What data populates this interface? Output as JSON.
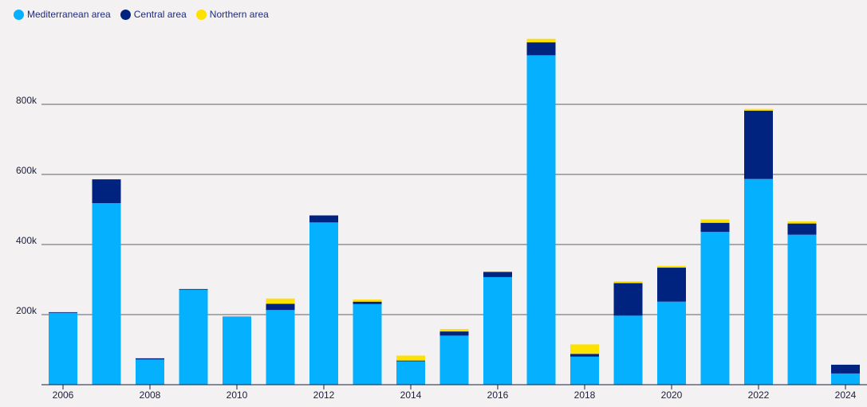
{
  "chart_data": {
    "type": "bar",
    "stacked": true,
    "title": "",
    "xlabel": "",
    "ylabel": "",
    "categories": [
      "2006",
      "2007",
      "2008",
      "2009",
      "2010",
      "2011",
      "2012",
      "2013",
      "2014",
      "2015",
      "2016",
      "2017",
      "2018",
      "2019",
      "2020",
      "2021",
      "2022",
      "2023",
      "2024"
    ],
    "x_tick_labels": [
      "2006",
      "2008",
      "2010",
      "2012",
      "2014",
      "2016",
      "2018",
      "2020",
      "2022",
      "2024"
    ],
    "y_ticks": [
      200000,
      400000,
      600000,
      800000
    ],
    "y_tick_labels": [
      "200k",
      "400k",
      "600k",
      "800k"
    ],
    "ylim": [
      0,
      1000000
    ],
    "grid": true,
    "legend_position": "top-left",
    "series": [
      {
        "name": "Mediterranean area",
        "color": "#05b1ff",
        "values": [
          205000,
          518000,
          72000,
          271000,
          193000,
          213000,
          463000,
          230000,
          67000,
          140000,
          307000,
          940000,
          80000,
          197000,
          237000,
          436000,
          587000,
          428000,
          32000
        ]
      },
      {
        "name": "Central area",
        "color": "#00237f",
        "values": [
          2000,
          68000,
          3000,
          2000,
          1000,
          18000,
          20000,
          7000,
          2000,
          12000,
          15000,
          37000,
          8000,
          93000,
          97000,
          26000,
          195000,
          32000,
          25000
        ]
      },
      {
        "name": "Northern area",
        "color": "#ffe100",
        "values": [
          0,
          0,
          2000,
          0,
          0,
          15000,
          0,
          6000,
          14000,
          7000,
          1000,
          10000,
          27000,
          5000,
          5000,
          10000,
          5000,
          6000,
          0
        ]
      }
    ]
  }
}
